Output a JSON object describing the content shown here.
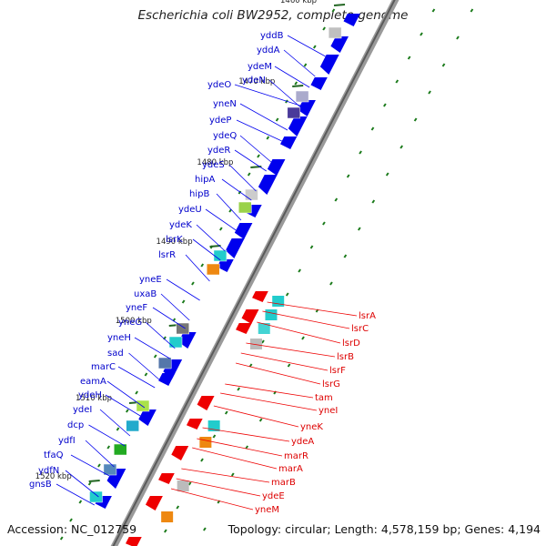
{
  "title": "Escherichia coli BW2952, complete genome",
  "footer": {
    "accession": "Accession: NC_012759",
    "topology": "Topology: circular; Length: 4,578,159 bp; Genes: 4,194"
  },
  "ticks": [
    "1460 kbp",
    "1470 kbp",
    "1480 kbp",
    "1490 kbp",
    "1500 kbp",
    "1510 kbp",
    "1520 kbp"
  ],
  "genes_left": [
    "yddB",
    "yddA",
    "ydeM",
    "ydeN",
    "ydeO",
    "yneN",
    "ydeP",
    "ydeQ",
    "ydeR",
    "ydeS",
    "hipA",
    "hipB",
    "ydeU",
    "ydeK",
    "lsrK",
    "lsrR",
    "yneE",
    "uxaB",
    "yneF",
    "yneG",
    "yneH",
    "sad",
    "marC",
    "eamA",
    "ydeH",
    "ydeI",
    "dcp",
    "ydfI",
    "tfaQ",
    "ydfN",
    "gnsB"
  ],
  "genes_right": [
    "lsrA",
    "lsrC",
    "lsrD",
    "lsrB",
    "lsrF",
    "lsrG",
    "tam",
    "yneI",
    "yneK",
    "ydeA",
    "marR",
    "marA",
    "marB",
    "ydeE",
    "yneM"
  ],
  "colors": {
    "forward_strand": "#0000ee",
    "reverse_strand": "#ee0000",
    "backbone": "#888888",
    "gc_skew_dash": "#1a7a1a"
  }
}
